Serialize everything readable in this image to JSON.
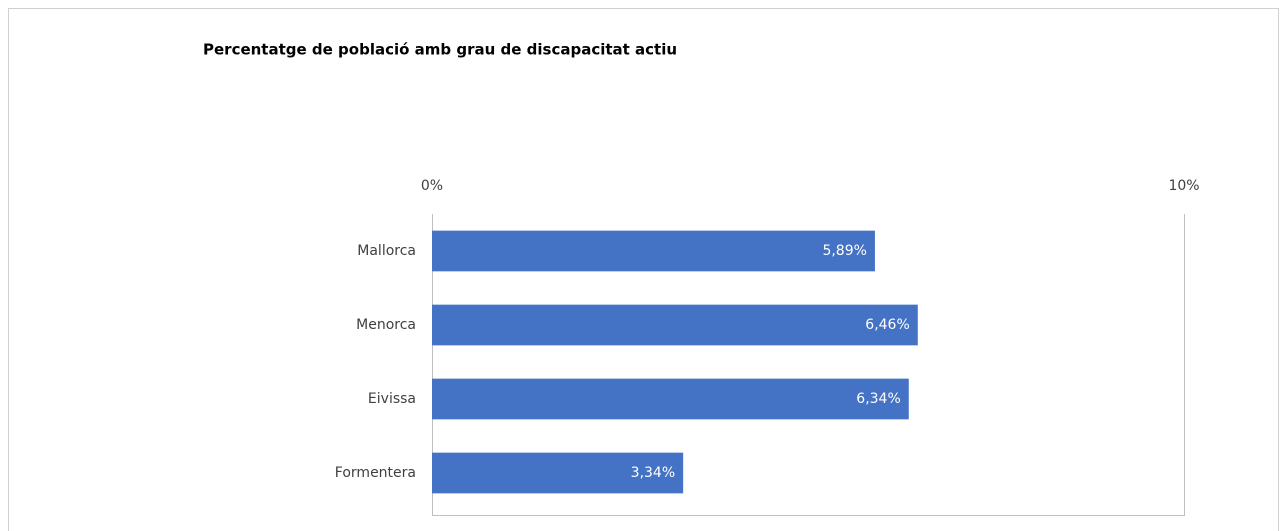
{
  "chart_data": {
    "type": "bar",
    "orientation": "horizontal",
    "title": "Percentatge de població amb grau de discapacitat actiu",
    "categories": [
      "Mallorca",
      "Menorca",
      "Eivissa",
      "Formentera"
    ],
    "values": [
      5.89,
      6.46,
      6.34,
      3.34
    ],
    "value_labels": [
      "5,89%",
      "6,46%",
      "6,34%",
      "3,34%"
    ],
    "color": "#4472c4",
    "xlim": [
      0,
      10
    ],
    "xticks": [
      {
        "value": 0,
        "label": "0%"
      },
      {
        "value": 10,
        "label": "10%"
      }
    ],
    "grid": true
  }
}
